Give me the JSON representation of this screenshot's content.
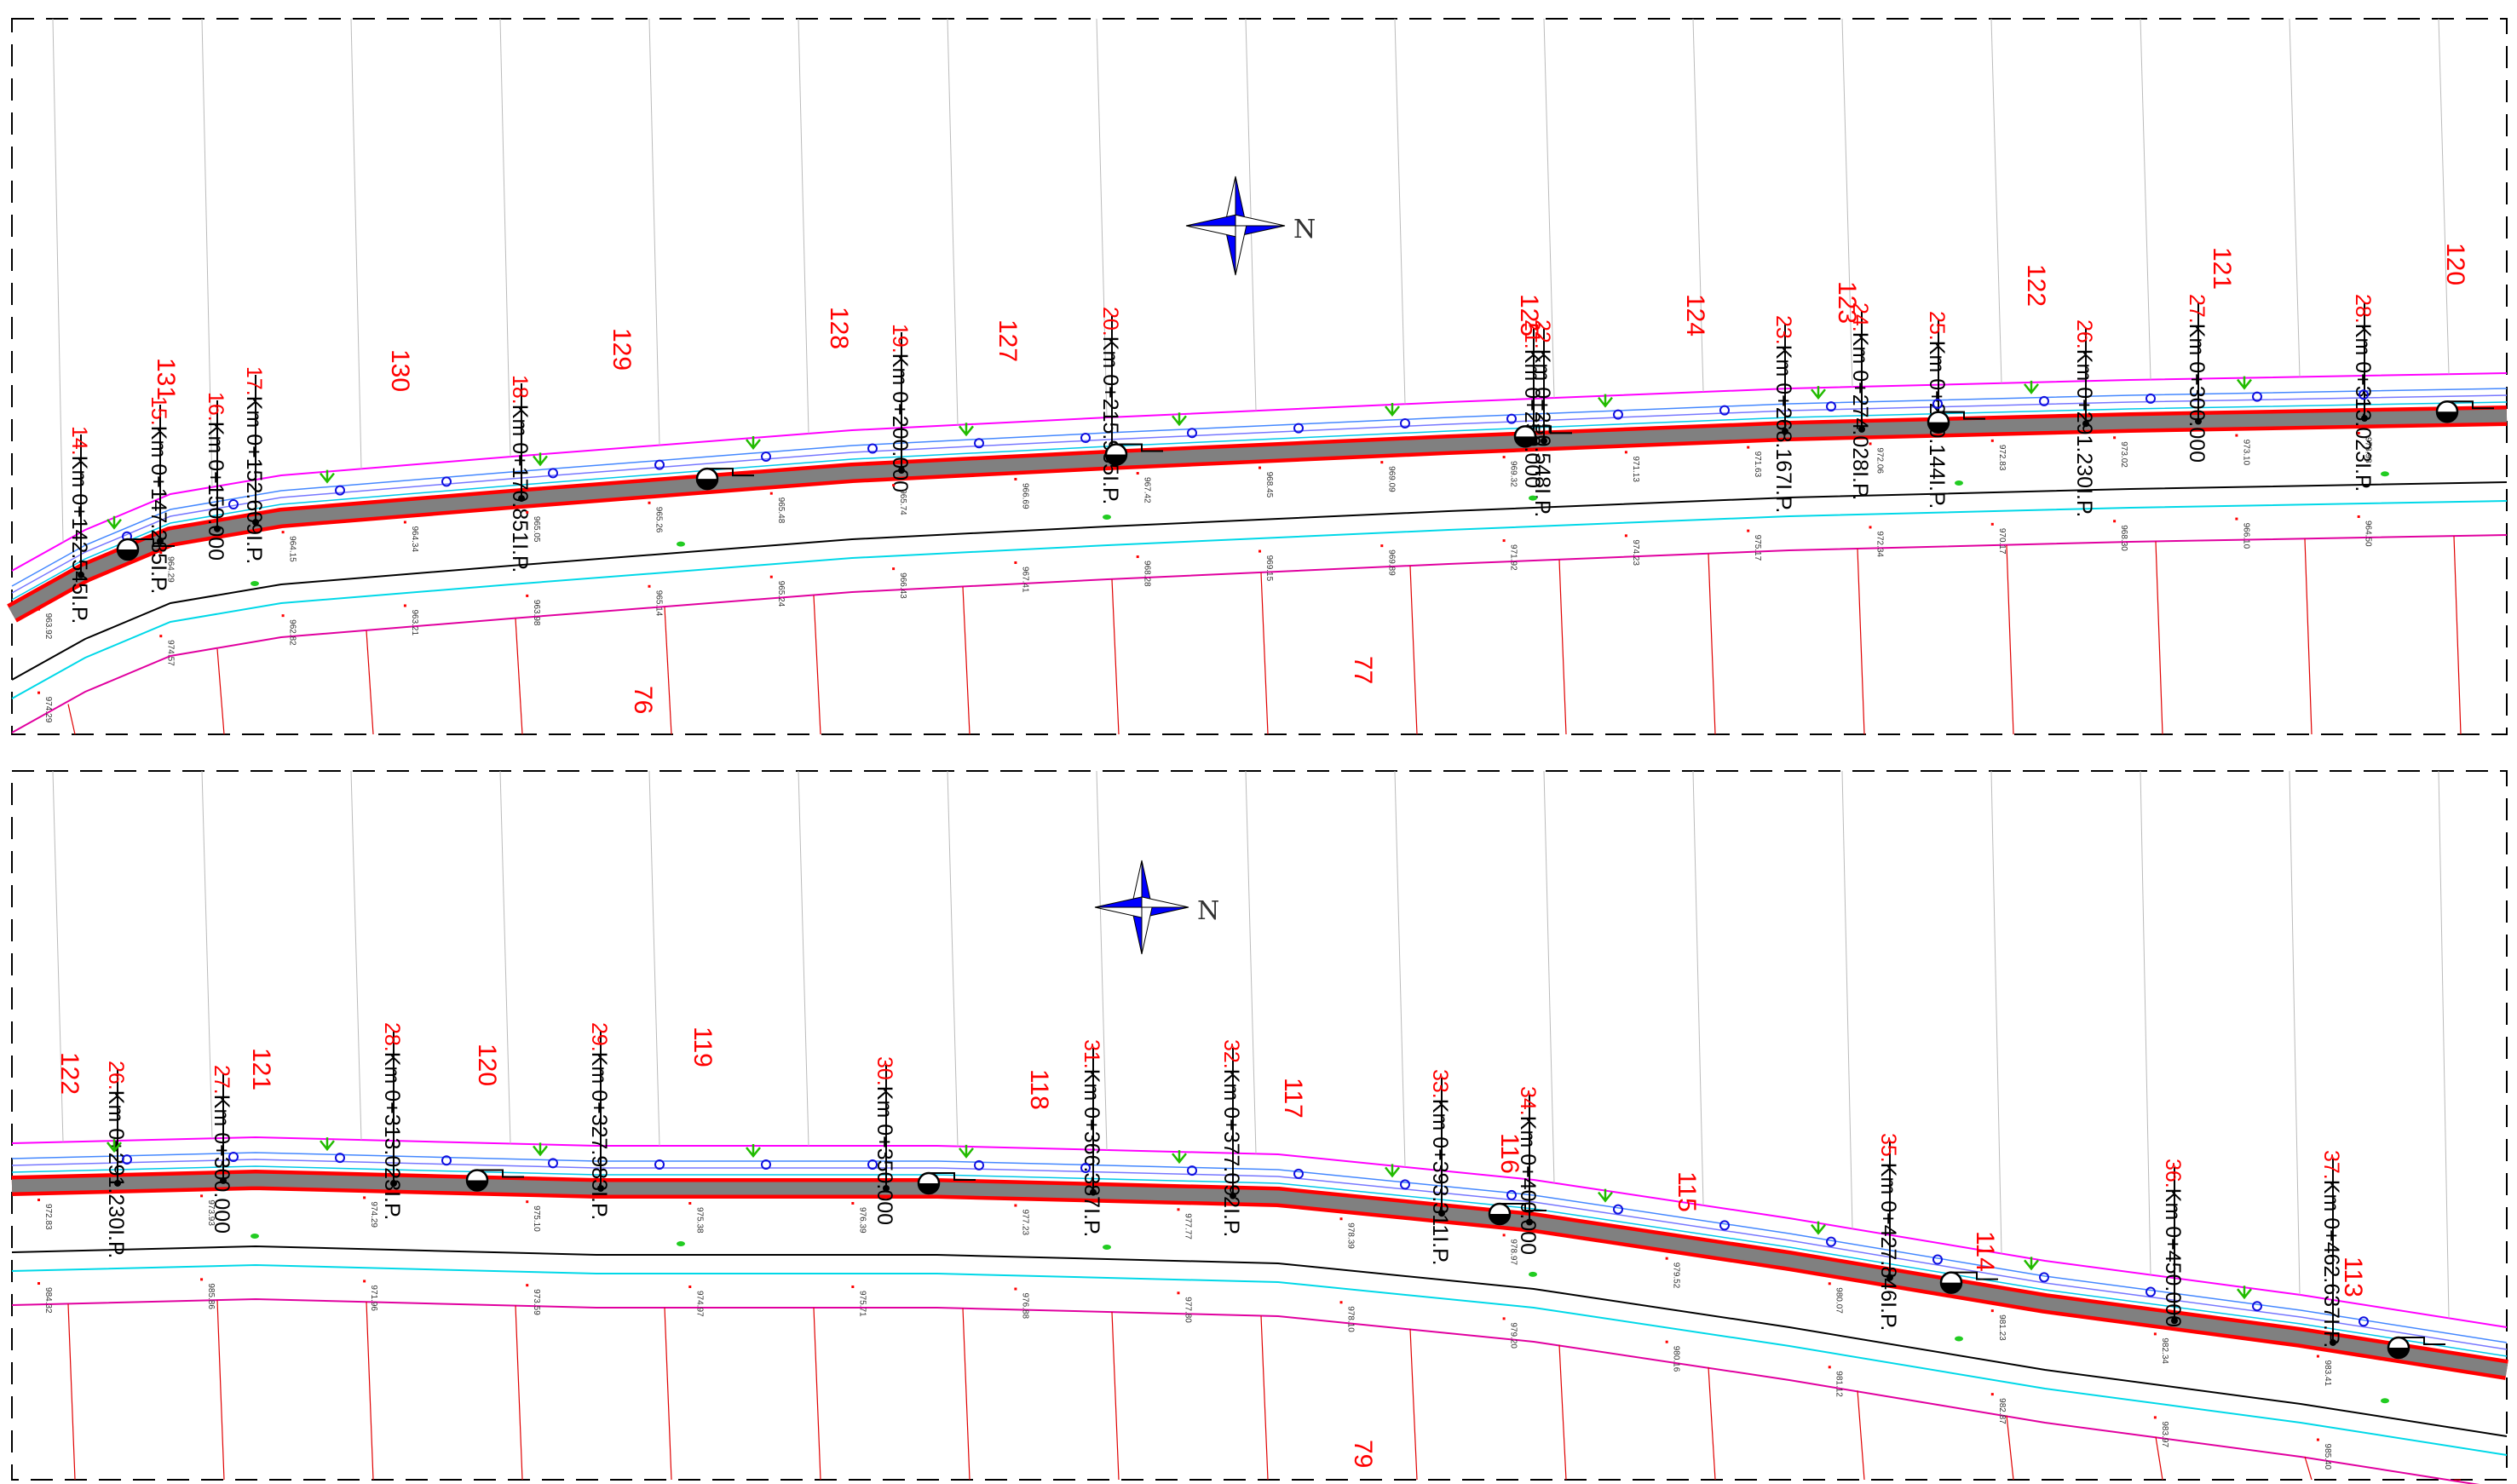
{
  "north_label": "N",
  "panels": [
    {
      "stations": [
        {
          "num": "14.",
          "text": "Km 0+142.545I.P."
        },
        {
          "num": "15.",
          "text": "Km 0+147.285I.P."
        },
        {
          "num": "16.",
          "text": "Km 0+150.000"
        },
        {
          "num": "17.",
          "text": "Km 0+152.609I.P."
        },
        {
          "num": "18.",
          "text": "Km 0+170.851I.P."
        },
        {
          "num": "19.",
          "text": "Km 0+200.000"
        },
        {
          "num": "20.",
          "text": "Km 0+215.935I.P."
        },
        {
          "num": "21.",
          "text": "Km 0+250.000"
        },
        {
          "num": "22.",
          "text": "Km 0+250.548I.P."
        },
        {
          "num": "23.",
          "text": "Km 0+268.167I.P."
        },
        {
          "num": "24.",
          "text": "Km 0+274.028I.P."
        },
        {
          "num": "25.",
          "text": "Km 0+280.144I.P."
        },
        {
          "num": "26.",
          "text": "Km 0+291.230I.P."
        },
        {
          "num": "27.",
          "text": "Km 0+300.000"
        },
        {
          "num": "28.",
          "text": "Km 0+313.023I.P."
        }
      ],
      "parcels_upper": [
        "131",
        "130",
        "129",
        "128",
        "127",
        "125",
        "124",
        "123",
        "122",
        "121",
        "120"
      ],
      "parcels_lower": [
        "76",
        "77"
      ],
      "elevations": [
        "963.92",
        "964.29",
        "964.15",
        "964.34",
        "965.05",
        "965.26",
        "965.48",
        "965.74",
        "966.69",
        "967.42",
        "968.45",
        "969.09",
        "969.32",
        "971.13",
        "971.63",
        "972.06",
        "972.83",
        "973.02",
        "973.10",
        "973.93",
        "974.29",
        "974.57",
        "962.82",
        "963.21",
        "963.98",
        "965.14",
        "965.24",
        "966.43",
        "967.41",
        "968.28",
        "969.15",
        "969.89",
        "971.92",
        "974.23",
        "975.17",
        "972.34",
        "970.17",
        "968.30",
        "966.10",
        "964.50"
      ]
    },
    {
      "stations": [
        {
          "num": "26.",
          "text": "Km 0+291.230I.P."
        },
        {
          "num": "27.",
          "text": "Km 0+300.000"
        },
        {
          "num": "28.",
          "text": "Km 0+313.023I.P."
        },
        {
          "num": "29.",
          "text": "Km 0+327.983I.P."
        },
        {
          "num": "30.",
          "text": "Km 0+350.000"
        },
        {
          "num": "31.",
          "text": "Km 0+366.387I.P."
        },
        {
          "num": "32.",
          "text": "Km 0+377.092I.P."
        },
        {
          "num": "33.",
          "text": "Km 0+393.311I.P."
        },
        {
          "num": "34.",
          "text": "Km 0+400.000"
        },
        {
          "num": "35.",
          "text": "Km 0+427.846I.P."
        },
        {
          "num": "36.",
          "text": "Km 0+450.000"
        },
        {
          "num": "37.",
          "text": "Km 0+462.637I.P."
        }
      ],
      "parcels_upper": [
        "122",
        "121",
        "120",
        "119",
        "118",
        "117",
        "116",
        "115",
        "114",
        "113"
      ],
      "parcels_lower": [
        "79"
      ],
      "elevations": [
        "972.83",
        "973.93",
        "974.29",
        "975.10",
        "975.38",
        "976.39",
        "977.23",
        "977.77",
        "978.39",
        "978.97",
        "979.52",
        "980.07",
        "981.23",
        "982.34",
        "983.41",
        "984.32",
        "985.86",
        "971.96",
        "973.59",
        "974.97",
        "975.71",
        "976.88",
        "977.80",
        "978.10",
        "979.20",
        "980.16",
        "981.12",
        "982.87",
        "983.97",
        "985.40"
      ]
    }
  ]
}
